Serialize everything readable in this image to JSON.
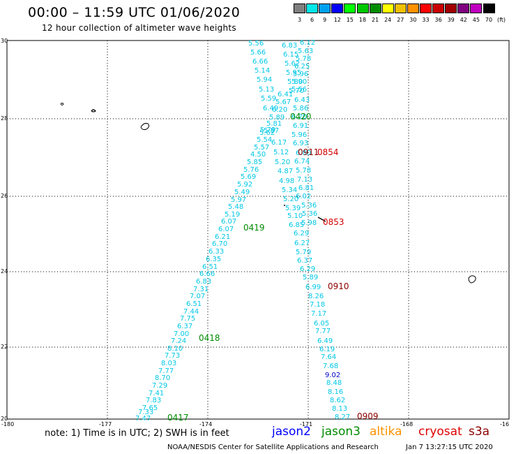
{
  "header": {
    "title": "00:00 – 11:59 UTC 01/06/2020",
    "subtitle": "12 hour collection of altimeter wave heights"
  },
  "legend": {
    "unit": "(ft)",
    "bins": [
      {
        "label": "3",
        "color": "#7f7f7f"
      },
      {
        "label": "6",
        "color": "#00e8e8"
      },
      {
        "label": "9",
        "color": "#00a0f0"
      },
      {
        "label": "12",
        "color": "#0000ff"
      },
      {
        "label": "15",
        "color": "#00ff00"
      },
      {
        "label": "18",
        "color": "#00c800"
      },
      {
        "label": "21",
        "color": "#008c00"
      },
      {
        "label": "24",
        "color": "#ffff00"
      },
      {
        "label": "27",
        "color": "#f0c000"
      },
      {
        "label": "30",
        "color": "#ff9000"
      },
      {
        "label": "33",
        "color": "#ff0000"
      },
      {
        "label": "36",
        "color": "#c80000"
      },
      {
        "label": "39",
        "color": "#a00000"
      },
      {
        "label": "42",
        "color": "#800080"
      },
      {
        "label": "45",
        "color": "#c000c0"
      },
      {
        "label": "70",
        "color": "#000000"
      }
    ]
  },
  "axes": {
    "x_ticks": [
      "-180",
      "-177",
      "-174",
      "-171",
      "-168",
      "-16"
    ],
    "y_ticks": [
      "30",
      "28",
      "26",
      "24",
      "22",
      "20"
    ]
  },
  "colors": {
    "swh_cyan": "#00c8e6",
    "swh_blue": "#0000c8",
    "time_green": "#008c00",
    "time_red": "#d20000",
    "time_maroon": "#8c0000"
  },
  "tracks": {
    "left_track": [
      {
        "v": "5.56",
        "c": "cyan"
      },
      {
        "v": "5.66",
        "c": "cyan"
      },
      {
        "v": "6.66",
        "c": "cyan"
      },
      {
        "v": "5.14",
        "c": "cyan"
      },
      {
        "v": "5.94",
        "c": "cyan"
      },
      {
        "v": "5.13",
        "c": "cyan"
      },
      {
        "v": "5.59",
        "c": "cyan"
      },
      {
        "v": "6.49",
        "c": "cyan"
      },
      {
        "v": "5.79",
        "c": "cyan"
      },
      {
        "v": "5.62",
        "c": "cyan"
      },
      {
        "v": "5.54",
        "c": "cyan"
      },
      {
        "v": "5.57",
        "c": "cyan"
      },
      {
        "v": "4.50",
        "c": "cyan"
      },
      {
        "v": "5.85",
        "c": "cyan"
      },
      {
        "v": "5.76",
        "c": "cyan"
      },
      {
        "v": "5.69",
        "c": "cyan"
      },
      {
        "v": "5.92",
        "c": "cyan"
      },
      {
        "v": "5.49",
        "c": "cyan"
      },
      {
        "v": "5.97",
        "c": "cyan"
      },
      {
        "v": "5.48",
        "c": "cyan"
      },
      {
        "v": "5.19",
        "c": "cyan"
      },
      {
        "v": "6.07",
        "c": "cyan"
      },
      {
        "v": "6.07",
        "c": "cyan"
      },
      {
        "v": "6.21",
        "c": "cyan"
      },
      {
        "v": "6.70",
        "c": "cyan"
      },
      {
        "v": "6.33",
        "c": "cyan"
      },
      {
        "v": "6.35",
        "c": "cyan"
      },
      {
        "v": "6.51",
        "c": "cyan"
      },
      {
        "v": "6.66",
        "c": "cyan"
      },
      {
        "v": "6.83",
        "c": "cyan"
      },
      {
        "v": "7.31",
        "c": "cyan"
      },
      {
        "v": "7.07",
        "c": "cyan"
      },
      {
        "v": "6.51",
        "c": "cyan"
      },
      {
        "v": "7.44",
        "c": "cyan"
      },
      {
        "v": "7.75",
        "c": "cyan"
      },
      {
        "v": "6.37",
        "c": "cyan"
      },
      {
        "v": "7.00",
        "c": "cyan"
      },
      {
        "v": "7.24",
        "c": "cyan"
      },
      {
        "v": "8.10",
        "c": "cyan"
      },
      {
        "v": "7.73",
        "c": "cyan"
      },
      {
        "v": "8.03",
        "c": "cyan"
      },
      {
        "v": "7.77",
        "c": "cyan"
      },
      {
        "v": "8.70",
        "c": "cyan"
      },
      {
        "v": "7.29",
        "c": "cyan"
      },
      {
        "v": "7.41",
        "c": "cyan"
      },
      {
        "v": "7.83",
        "c": "cyan"
      },
      {
        "v": "7.65",
        "c": "cyan"
      },
      {
        "v": "7.33",
        "c": "cyan"
      },
      {
        "v": "7.47",
        "c": "cyan"
      }
    ],
    "middle_track": [
      {
        "v": "6.83",
        "c": "cyan"
      },
      {
        "v": "6.15",
        "c": "cyan"
      },
      {
        "v": "5.62",
        "c": "cyan"
      },
      {
        "v": "5.95",
        "c": "cyan"
      },
      {
        "v": "5.80",
        "c": "cyan"
      },
      {
        "v": "5.70",
        "c": "cyan"
      },
      {
        "v": "6.41",
        "c": "cyan"
      },
      {
        "v": "5.67",
        "c": "cyan"
      },
      {
        "v": "6.20",
        "c": "cyan"
      },
      {
        "v": "5.89",
        "c": "cyan"
      },
      {
        "v": "5.81",
        "c": "cyan"
      },
      {
        "v": "5.87",
        "c": "cyan"
      },
      {
        "v": "6.17",
        "c": "cyan"
      },
      {
        "v": "5.12",
        "c": "cyan"
      },
      {
        "v": "5.20",
        "c": "cyan"
      },
      {
        "v": "4.87",
        "c": "cyan"
      },
      {
        "v": "4.98",
        "c": "cyan"
      },
      {
        "v": "5.34",
        "c": "cyan"
      },
      {
        "v": "5.20",
        "c": "cyan"
      },
      {
        "v": "5.39",
        "c": "cyan"
      },
      {
        "v": "5.10",
        "c": "cyan"
      },
      {
        "v": "6.85",
        "c": "cyan"
      }
    ],
    "right_track": [
      {
        "v": "6.12",
        "c": "cyan"
      },
      {
        "v": "5.63",
        "c": "cyan"
      },
      {
        "v": "5.78",
        "c": "cyan"
      },
      {
        "v": "6.25",
        "c": "cyan"
      },
      {
        "v": "5.96",
        "c": "cyan"
      },
      {
        "v": "5.90",
        "c": "cyan"
      },
      {
        "v": "5.56",
        "c": "cyan"
      },
      {
        "v": "6.43",
        "c": "cyan"
      },
      {
        "v": "5.86",
        "c": "cyan"
      },
      {
        "v": "6.20",
        "c": "cyan"
      },
      {
        "v": "6.91",
        "c": "cyan"
      },
      {
        "v": "5.96",
        "c": "cyan"
      },
      {
        "v": "6.93",
        "c": "cyan"
      },
      {
        "v": "6.80",
        "c": "cyan"
      },
      {
        "v": "6.74",
        "c": "cyan"
      },
      {
        "v": "5.78",
        "c": "cyan"
      },
      {
        "v": "7.13",
        "c": "cyan"
      },
      {
        "v": "6.81",
        "c": "cyan"
      },
      {
        "v": "6.02",
        "c": "cyan"
      },
      {
        "v": "5.36",
        "c": "cyan"
      },
      {
        "v": "5.36",
        "c": "cyan"
      },
      {
        "v": "5.98",
        "c": "cyan"
      },
      {
        "v": "6.29",
        "c": "cyan"
      },
      {
        "v": "6.27",
        "c": "cyan"
      },
      {
        "v": "5.79",
        "c": "cyan"
      },
      {
        "v": "6.37",
        "c": "cyan"
      },
      {
        "v": "6.29",
        "c": "cyan"
      },
      {
        "v": "5.89",
        "c": "cyan"
      },
      {
        "v": "6.99",
        "c": "cyan"
      },
      {
        "v": "8.26",
        "c": "cyan"
      },
      {
        "v": "7.18",
        "c": "cyan"
      },
      {
        "v": "7.17",
        "c": "cyan"
      },
      {
        "v": "6.05",
        "c": "cyan"
      },
      {
        "v": "7.77",
        "c": "cyan"
      },
      {
        "v": "6.49",
        "c": "cyan"
      },
      {
        "v": "6.19",
        "c": "cyan"
      },
      {
        "v": "7.64",
        "c": "cyan"
      },
      {
        "v": "7.68",
        "c": "cyan"
      },
      {
        "v": "9.02",
        "c": "blue"
      },
      {
        "v": "8.48",
        "c": "cyan"
      },
      {
        "v": "8.16",
        "c": "cyan"
      },
      {
        "v": "8.62",
        "c": "cyan"
      },
      {
        "v": "8.13",
        "c": "cyan"
      },
      {
        "v": "8.27",
        "c": "cyan"
      }
    ],
    "time_labels": [
      {
        "t": "0420",
        "c": "green"
      },
      {
        "t": "0911",
        "c": "maroon"
      },
      {
        "t": "0854",
        "c": "red"
      },
      {
        "t": "0853",
        "c": "red"
      },
      {
        "t": "0419",
        "c": "green"
      },
      {
        "t": "0910",
        "c": "maroon"
      },
      {
        "t": "0418",
        "c": "green"
      },
      {
        "t": "0417",
        "c": "green"
      },
      {
        "t": "0909",
        "c": "maroon"
      }
    ]
  },
  "footer": {
    "note": "note:  1) Time is in UTC;  2) SWH is in feet",
    "missions": [
      {
        "name": "jason2",
        "color": "#0000ff"
      },
      {
        "name": "jason3",
        "color": "#008c00"
      },
      {
        "name": "altika",
        "color": "#ff9000"
      },
      {
        "name": "cryosat",
        "color": "#e00000"
      },
      {
        "name": "s3a",
        "color": "#8c0000"
      }
    ],
    "credit": "NOAA/NESDIS Center for Satellite Applications and Research",
    "stamp": "Jan  7 13:27:15 UTC 2020"
  }
}
